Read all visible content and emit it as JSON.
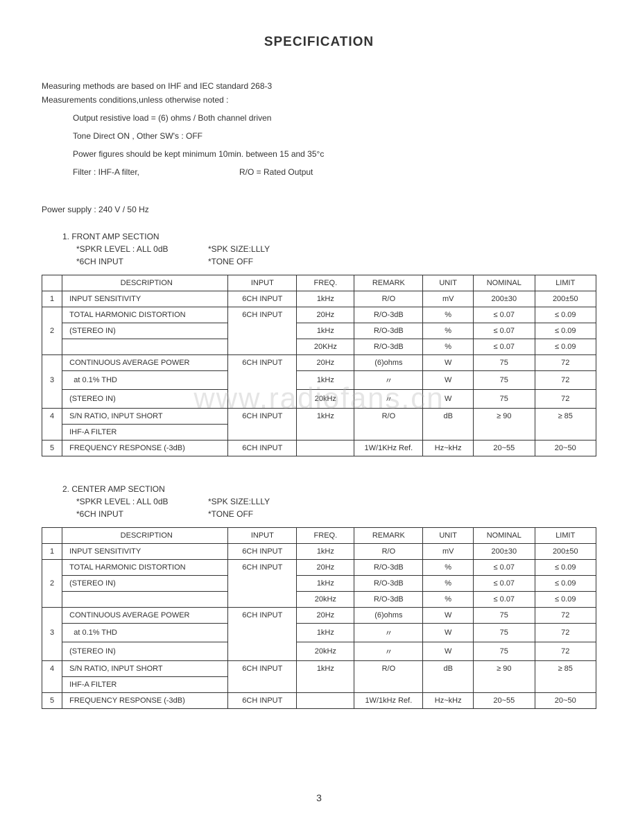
{
  "title": "SPECIFICATION",
  "intro1": "Measuring methods are based on IHF and IEC standard 268-3",
  "intro2": "Measurements conditions,unless otherwise noted :",
  "cond": {
    "c1": "Output resistive load = (6) ohms / Both channel driven",
    "c2": "Tone Direct ON , Other SW's : OFF",
    "c3": "Power figures should be kept minimum 10min. between 15 and 35°c",
    "c4a": "Filter : IHF-A filter,",
    "c4b": "R/O = Rated Output"
  },
  "power_supply": "Power supply : 240 V / 50 Hz",
  "section1": {
    "head": "1.  FRONT AMP SECTION",
    "sub1a": "*SPKR LEVEL : ALL 0dB",
    "sub1b": "*SPK SIZE:LLLY",
    "sub2a": "*6CH INPUT",
    "sub2b": "*TONE OFF"
  },
  "section2": {
    "head": "2.  CENTER AMP SECTION",
    "sub1a": "*SPKR LEVEL : ALL 0dB",
    "sub1b": "*SPK SIZE:LLLY",
    "sub2a": "*6CH  INPUT",
    "sub2b": "*TONE OFF"
  },
  "headers": {
    "desc": "DESCRIPTION",
    "input": "INPUT",
    "freq": "FREQ.",
    "remark": "REMARK",
    "unit": "UNIT",
    "nominal": "NOMINAL",
    "limit": "LIMIT"
  },
  "t1": {
    "r1": {
      "n": "1",
      "d": "INPUT SENSITIVITY",
      "i": "6CH INPUT",
      "f": "1kHz",
      "r": "R/O",
      "u": "mV",
      "nom": "200±30",
      "lim": "200±50"
    },
    "r2a": {
      "n": "",
      "d": "TOTAL HARMONIC DISTORTION",
      "i": "6CH INPUT",
      "f": "20Hz",
      "r": "R/O-3dB",
      "u": "%",
      "nom": "≤ 0.07",
      "lim": "≤ 0.09"
    },
    "r2b": {
      "n": "2",
      "d": "(STEREO IN)",
      "i": "",
      "f": "1kHz",
      "r": "R/O-3dB",
      "u": "%",
      "nom": "≤ 0.07",
      "lim": "≤ 0.09"
    },
    "r2c": {
      "n": "",
      "d": "",
      "i": "",
      "f": "20KHz",
      "r": "R/O-3dB",
      "u": "%",
      "nom": "≤ 0.07",
      "lim": "≤ 0.09"
    },
    "r3a": {
      "n": "",
      "d": "CONTINUOUS AVERAGE POWER",
      "i": "6CH INPUT",
      "f": "20Hz",
      "r": "(6)ohms",
      "u": "W",
      "nom": "75",
      "lim": "72"
    },
    "r3b": {
      "n": "3",
      "d": "  at  0.1% THD",
      "i": "",
      "f": "1kHz",
      "r": "〃",
      "u": "W",
      "nom": "75",
      "lim": "72"
    },
    "r3c": {
      "n": "",
      "d": "(STEREO IN)",
      "i": "",
      "f": "20kHz",
      "r": "〃",
      "u": "W",
      "nom": "75",
      "lim": "72"
    },
    "r4a": {
      "n": "4",
      "d": "S/N RATIO, INPUT SHORT",
      "i": "6CH INPUT",
      "f": "1kHz",
      "r": "R/O",
      "u": "dB",
      "nom": "≥ 90",
      "lim": "≥ 85"
    },
    "r4b": {
      "n": "",
      "d": "IHF-A FILTER",
      "i": "",
      "f": "",
      "r": "",
      "u": "",
      "nom": "",
      "lim": ""
    },
    "r5": {
      "n": "5",
      "d": "FREQUENCY RESPONSE (-3dB)",
      "i": "6CH INPUT",
      "f": "",
      "r": "1W/1KHz Ref.",
      "u": "Hz~kHz",
      "nom": "20~55",
      "lim": "20~50"
    }
  },
  "t2": {
    "r1": {
      "n": "1",
      "d": "INPUT SENSITIVITY",
      "i": "6CH INPUT",
      "f": "1kHz",
      "r": "R/O",
      "u": "mV",
      "nom": "200±30",
      "lim": "200±50"
    },
    "r2a": {
      "n": "",
      "d": "TOTAL HARMONIC DISTORTION",
      "i": "6CH INPUT",
      "f": "20Hz",
      "r": "R/O-3dB",
      "u": "%",
      "nom": "≤ 0.07",
      "lim": "≤ 0.09"
    },
    "r2b": {
      "n": "2",
      "d": "(STEREO IN)",
      "i": "",
      "f": "1kHz",
      "r": "R/O-3dB",
      "u": "%",
      "nom": "≤ 0.07",
      "lim": "≤ 0.09"
    },
    "r2c": {
      "n": "",
      "d": "",
      "i": "",
      "f": "20kHz",
      "r": "R/O-3dB",
      "u": "%",
      "nom": "≤ 0.07",
      "lim": "≤ 0.09"
    },
    "r3a": {
      "n": "",
      "d": "CONTINUOUS AVERAGE POWER",
      "i": "6CH INPUT",
      "f": "20Hz",
      "r": "(6)ohms",
      "u": "W",
      "nom": "75",
      "lim": "72"
    },
    "r3b": {
      "n": "3",
      "d": "  at  0.1% THD",
      "i": "",
      "f": "1kHz",
      "r": "〃",
      "u": "W",
      "nom": "75",
      "lim": "72"
    },
    "r3c": {
      "n": "",
      "d": "(STEREO IN)",
      "i": "",
      "f": "20kHz",
      "r": "〃",
      "u": "W",
      "nom": "75",
      "lim": "72"
    },
    "r4a": {
      "n": "4",
      "d": "S/N RATIO, INPUT SHORT",
      "i": "6CH INPUT",
      "f": "1kHz",
      "r": "R/O",
      "u": "dB",
      "nom": "≥ 90",
      "lim": "≥ 85"
    },
    "r4b": {
      "n": "",
      "d": "IHF-A FILTER",
      "i": "",
      "f": "",
      "r": "",
      "u": "",
      "nom": "",
      "lim": ""
    },
    "r5": {
      "n": "5",
      "d": "FREQUENCY RESPONSE (-3dB)",
      "i": "6CH INPUT",
      "f": "",
      "r": "1W/1kHz Ref.",
      "u": "Hz~kHz",
      "nom": "20~55",
      "lim": "20~50"
    }
  },
  "watermark": "www.radiofans.cn",
  "pagenum": "3"
}
